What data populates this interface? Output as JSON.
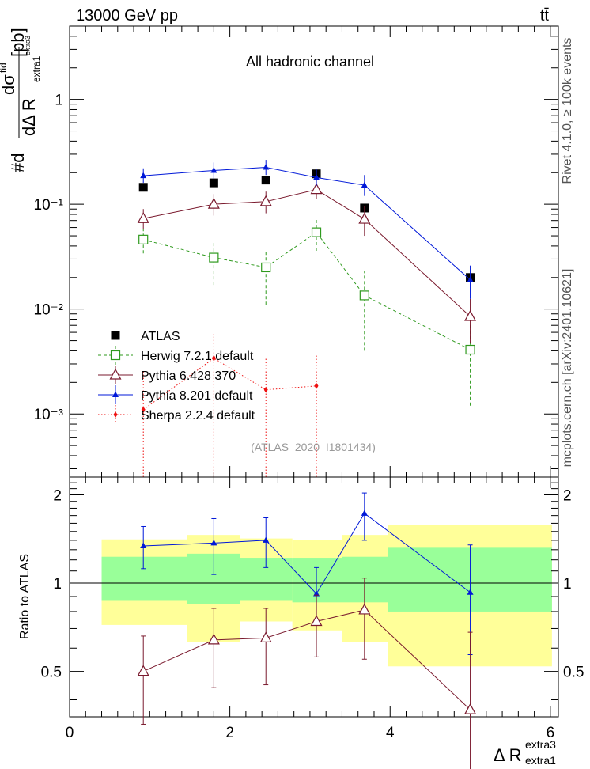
{
  "header": {
    "energy_label": "13000 GeV pp",
    "process_label": "tt̄"
  },
  "side": {
    "rivet_label": "Rivet 4.1.0, ≥ 100k events",
    "mcplots_label": "mcplots.cern.ch [arXiv:2401.10621]"
  },
  "colors": {
    "atlas": "#000000",
    "herwig": "#2f9a1e",
    "pythia6": "#7a1a2e",
    "pythia8": "#0018d8",
    "sherpa": "#ee1010",
    "band_inner": "#99ff99",
    "band_outer": "#ffff99"
  },
  "chart_data": [
    {
      "type": "scatter",
      "panel": "main",
      "title": "All hadronic channel",
      "analysis_label": "(ATLAS_2020_I1801434)",
      "ylabel": "#d dσ^{tid} / dΔ R_{extra1}^{extra3} [pb]",
      "ylabel_parts": {
        "num": "dσ",
        "num_sup": "tid",
        "den": "dΔ R",
        "den_sub": "extra1",
        "den_sup": "extra3",
        "prefix": "#d",
        "unit": "[pb]"
      },
      "yscale": "log",
      "ylim": [
        0.00025,
        5
      ],
      "xlim": [
        0,
        6.1
      ],
      "yticks": [
        {
          "value": 0.001,
          "label": "10⁻³"
        },
        {
          "value": 0.01,
          "label": "10⁻²"
        },
        {
          "value": 0.1,
          "label": "10⁻¹"
        },
        {
          "value": 1,
          "label": "1"
        }
      ],
      "series": [
        {
          "name": "ATLAS",
          "key": "atlas",
          "marker": "square-filled",
          "line": "none",
          "points": [
            {
              "x": 0.92,
              "y": 0.145
            },
            {
              "x": 1.8,
              "y": 0.16
            },
            {
              "x": 2.45,
              "y": 0.17
            },
            {
              "x": 3.08,
              "y": 0.195
            },
            {
              "x": 3.68,
              "y": 0.092
            },
            {
              "x": 5.0,
              "y": 0.02
            }
          ]
        },
        {
          "name": "Herwig 7.2.1 default",
          "key": "herwig",
          "marker": "square-open",
          "line": "dashed",
          "points": [
            {
              "x": 0.92,
              "y": 0.046,
              "lo": 0.034,
              "hi": 0.058
            },
            {
              "x": 1.8,
              "y": 0.031,
              "lo": 0.017,
              "hi": 0.045
            },
            {
              "x": 2.45,
              "y": 0.025,
              "lo": 0.011,
              "hi": 0.037
            },
            {
              "x": 3.08,
              "y": 0.054,
              "lo": 0.036,
              "hi": 0.073
            },
            {
              "x": 3.68,
              "y": 0.0135,
              "lo": 0.004,
              "hi": 0.023
            },
            {
              "x": 5.0,
              "y": 0.0041,
              "lo": 0.0012,
              "hi": 0.007
            }
          ]
        },
        {
          "name": "Pythia 6.428 370",
          "key": "pythia6",
          "marker": "triangle-open",
          "line": "solid",
          "points": [
            {
              "x": 0.92,
              "y": 0.073,
              "lo": 0.058,
              "hi": 0.09
            },
            {
              "x": 1.8,
              "y": 0.1,
              "lo": 0.078,
              "hi": 0.125
            },
            {
              "x": 2.45,
              "y": 0.106,
              "lo": 0.082,
              "hi": 0.132
            },
            {
              "x": 3.08,
              "y": 0.138,
              "lo": 0.112,
              "hi": 0.168
            },
            {
              "x": 3.68,
              "y": 0.072,
              "lo": 0.05,
              "hi": 0.096
            },
            {
              "x": 5.0,
              "y": 0.0085,
              "lo": 0.0047,
              "hi": 0.0125
            }
          ]
        },
        {
          "name": "Pythia 8.201 default",
          "key": "pythia8",
          "marker": "triangle-filled",
          "line": "solid",
          "points": [
            {
              "x": 0.92,
              "y": 0.187,
              "lo": 0.16,
              "hi": 0.22
            },
            {
              "x": 1.8,
              "y": 0.21,
              "lo": 0.175,
              "hi": 0.25
            },
            {
              "x": 2.45,
              "y": 0.225,
              "lo": 0.19,
              "hi": 0.265
            },
            {
              "x": 3.08,
              "y": 0.18,
              "lo": 0.15,
              "hi": 0.215
            },
            {
              "x": 3.68,
              "y": 0.152,
              "lo": 0.12,
              "hi": 0.19
            },
            {
              "x": 5.0,
              "y": 0.019,
              "lo": 0.0125,
              "hi": 0.026
            }
          ]
        },
        {
          "name": "Sherpa 2.2.4 default",
          "key": "sherpa",
          "marker": "diamond-filled",
          "line": "dotted",
          "points": [
            {
              "x": 0.92,
              "y": 0.0011,
              "lo": 0.00025,
              "hi": 0.0026
            },
            {
              "x": 1.8,
              "y": 0.0034,
              "lo": 0.00025,
              "hi": 0.0058
            },
            {
              "x": 2.45,
              "y": 0.0017,
              "lo": 0.00025,
              "hi": 0.0035
            },
            {
              "x": 3.08,
              "y": 0.00185,
              "lo": 0.00025,
              "hi": 0.0037
            }
          ]
        }
      ]
    },
    {
      "type": "scatter",
      "panel": "ratio",
      "ylabel": "Ratio to ATLAS",
      "xlabel": "Δ R",
      "xlabel_sub": "extra1",
      "xlabel_sup": "extra3",
      "xlim": [
        0,
        6.1
      ],
      "ylim": [
        0.35,
        2.3
      ],
      "reference": 1,
      "xticks": [
        {
          "value": 0,
          "label": "0"
        },
        {
          "value": 2,
          "label": "2"
        },
        {
          "value": 4,
          "label": "4"
        },
        {
          "value": 6,
          "label": "6"
        }
      ],
      "yticks": [
        {
          "value": 0.5,
          "label": "0.5"
        },
        {
          "value": 1,
          "label": "1"
        },
        {
          "value": 2,
          "label": "2"
        }
      ],
      "bands": [
        {
          "x0": 0.4,
          "x1": 1.47,
          "inner": [
            0.87,
            1.23
          ],
          "outer": [
            0.72,
            1.41
          ]
        },
        {
          "x0": 1.47,
          "x1": 2.13,
          "inner": [
            0.85,
            1.26
          ],
          "outer": [
            0.63,
            1.46
          ]
        },
        {
          "x0": 2.13,
          "x1": 2.78,
          "inner": [
            0.87,
            1.22
          ],
          "outer": [
            0.74,
            1.42
          ]
        },
        {
          "x0": 2.78,
          "x1": 3.4,
          "inner": [
            0.86,
            1.22
          ],
          "outer": [
            0.69,
            1.4
          ]
        },
        {
          "x0": 3.4,
          "x1": 3.97,
          "inner": [
            0.86,
            1.23
          ],
          "outer": [
            0.63,
            1.46
          ]
        },
        {
          "x0": 3.97,
          "x1": 6.02,
          "inner": [
            0.8,
            1.32
          ],
          "outer": [
            0.52,
            1.58
          ]
        }
      ],
      "series": [
        {
          "name": "Pythia 8.201 default",
          "key": "pythia8",
          "marker": "triangle-filled",
          "points": [
            {
              "x": 0.92,
              "y": 1.34,
              "lo": 1.12,
              "hi": 1.56
            },
            {
              "x": 1.8,
              "y": 1.37,
              "lo": 1.07,
              "hi": 1.66
            },
            {
              "x": 2.45,
              "y": 1.4,
              "lo": 1.13,
              "hi": 1.67
            },
            {
              "x": 3.08,
              "y": 0.92,
              "lo": 0.72,
              "hi": 1.13
            },
            {
              "x": 3.68,
              "y": 1.73,
              "lo": 1.4,
              "hi": 2.03
            },
            {
              "x": 5.0,
              "y": 0.93,
              "lo": 0.57,
              "hi": 1.35
            }
          ]
        },
        {
          "name": "Pythia 6.428 370",
          "key": "pythia6",
          "marker": "triangle-open",
          "points": [
            {
              "x": 0.92,
              "y": 0.5,
              "lo": 0.33,
              "hi": 0.66
            },
            {
              "x": 1.8,
              "y": 0.64,
              "lo": 0.44,
              "hi": 0.82
            },
            {
              "x": 2.45,
              "y": 0.65,
              "lo": 0.45,
              "hi": 0.82
            },
            {
              "x": 3.08,
              "y": 0.74,
              "lo": 0.56,
              "hi": 0.91
            },
            {
              "x": 3.68,
              "y": 0.81,
              "lo": 0.55,
              "hi": 1.04
            },
            {
              "x": 5.0,
              "y": 0.37,
              "lo": 0.2,
              "hi": 0.68
            }
          ]
        }
      ]
    }
  ]
}
